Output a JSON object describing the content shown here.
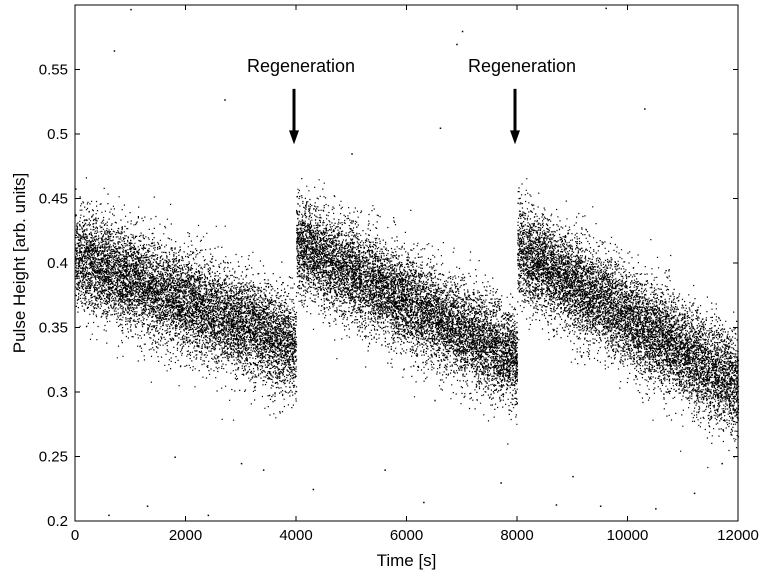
{
  "chart_data": {
    "type": "scatter",
    "title": "",
    "xlabel": "Time [s]",
    "ylabel": "Pulse Height [arb. units]",
    "xlim": [
      0,
      12000
    ],
    "ylim": [
      0.2,
      0.6
    ],
    "x_ticks": [
      0,
      2000,
      4000,
      6000,
      8000,
      10000,
      12000
    ],
    "y_ticks": [
      0.2,
      0.25,
      0.3,
      0.35,
      0.4,
      0.45,
      0.5,
      0.55
    ],
    "x_tick_labels": [
      "0",
      "2000",
      "4000",
      "6000",
      "8000",
      "10000",
      "12000"
    ],
    "y_tick_labels": [
      "0.2",
      "0.25",
      "0.3",
      "0.35",
      "0.4",
      "0.45",
      "0.5",
      "0.55"
    ],
    "grid": false,
    "point_color": "#000000",
    "segments": [
      {
        "x_start": 0,
        "x_end": 4000,
        "y_center_start": 0.405,
        "y_center_end": 0.335,
        "band_halfwidth": 0.045,
        "point_count": 9000
      },
      {
        "x_start": 4000,
        "x_end": 8000,
        "y_center_start": 0.415,
        "y_center_end": 0.325,
        "band_halfwidth": 0.045,
        "point_count": 9000
      },
      {
        "x_start": 8000,
        "x_end": 12000,
        "y_center_start": 0.41,
        "y_center_end": 0.305,
        "band_halfwidth": 0.045,
        "point_count": 9000
      }
    ],
    "outliers": [
      [
        700,
        0.565
      ],
      [
        1000,
        0.597
      ],
      [
        2700,
        0.527
      ],
      [
        5000,
        0.485
      ],
      [
        6600,
        0.505
      ],
      [
        7000,
        0.58
      ],
      [
        6900,
        0.57
      ],
      [
        9600,
        0.598
      ],
      [
        10300,
        0.52
      ],
      [
        8700,
        0.213
      ],
      [
        9500,
        0.212
      ],
      [
        10500,
        0.21
      ],
      [
        2400,
        0.205
      ],
      [
        1300,
        0.212
      ],
      [
        600,
        0.205
      ],
      [
        3000,
        0.245
      ],
      [
        4300,
        0.225
      ],
      [
        6300,
        0.215
      ],
      [
        7700,
        0.23
      ],
      [
        11200,
        0.222
      ],
      [
        1800,
        0.25
      ],
      [
        5600,
        0.24
      ],
      [
        9000,
        0.235
      ],
      [
        11700,
        0.245
      ],
      [
        3400,
        0.24
      ]
    ],
    "annotations": [
      {
        "text": "Regeneration",
        "x": 4000,
        "arrow_top": 0.535,
        "arrow_tip": 0.492
      },
      {
        "text": "Regeneration",
        "x": 8000,
        "arrow_top": 0.535,
        "arrow_tip": 0.492
      }
    ]
  }
}
